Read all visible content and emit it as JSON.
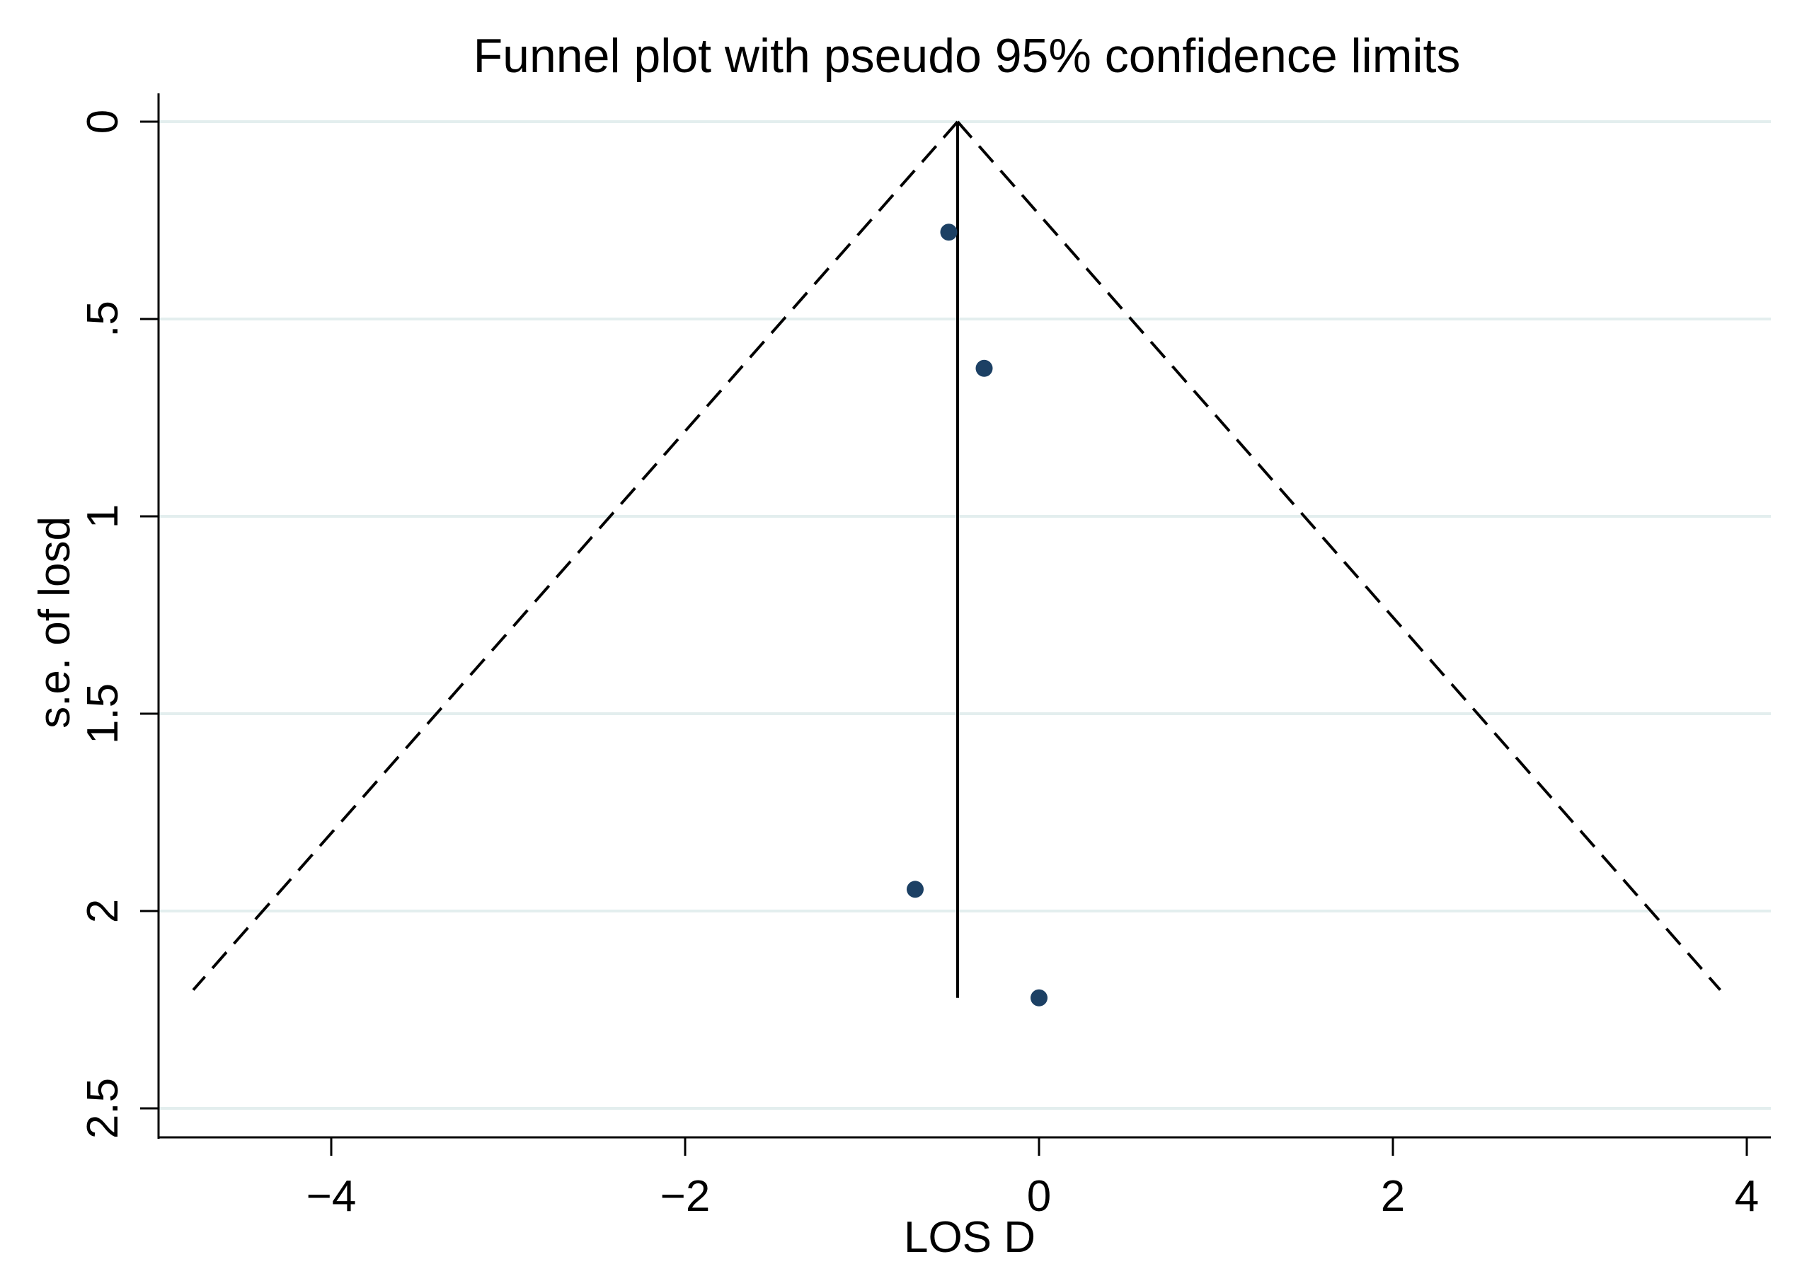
{
  "chart_data": {
    "type": "scatter",
    "title": "Funnel plot with pseudo 95% confidence limits",
    "xlabel": "LOS D",
    "ylabel": "s.e. of losd",
    "xlim": [
      -5,
      4.1
    ],
    "ylim": [
      0,
      2.57
    ],
    "y_reversed": true,
    "grid": true,
    "x_ticks": [
      {
        "value": -4,
        "label": "−4"
      },
      {
        "value": -2,
        "label": "−2"
      },
      {
        "value": 0,
        "label": "0"
      },
      {
        "value": 2,
        "label": "2"
      },
      {
        "value": 4,
        "label": "4"
      }
    ],
    "y_ticks": [
      {
        "value": 0,
        "label": "0"
      },
      {
        "value": 0.5,
        "label": ".5"
      },
      {
        "value": 1,
        "label": "1"
      },
      {
        "value": 1.5,
        "label": "1.5"
      },
      {
        "value": 2,
        "label": "2"
      },
      {
        "value": 2.5,
        "label": "2.5"
      }
    ],
    "points": [
      {
        "x": -0.51,
        "y": 0.28
      },
      {
        "x": -0.31,
        "y": 0.625
      },
      {
        "x": -0.7,
        "y": 1.945
      },
      {
        "x": 0.0,
        "y": 2.22
      }
    ],
    "pooled_estimate": -0.46,
    "pooled_line_ymax": 2.22,
    "confidence_limits": {
      "apex": {
        "x": -0.46,
        "y": 0
      },
      "left_end": {
        "x": -4.78,
        "y": 2.2
      },
      "right_end": {
        "x": 3.85,
        "y": 2.2
      }
    },
    "colors": {
      "points": "#1c4064",
      "grid": "#e3eeee",
      "axis": "#000000",
      "background": "#ffffff"
    }
  }
}
